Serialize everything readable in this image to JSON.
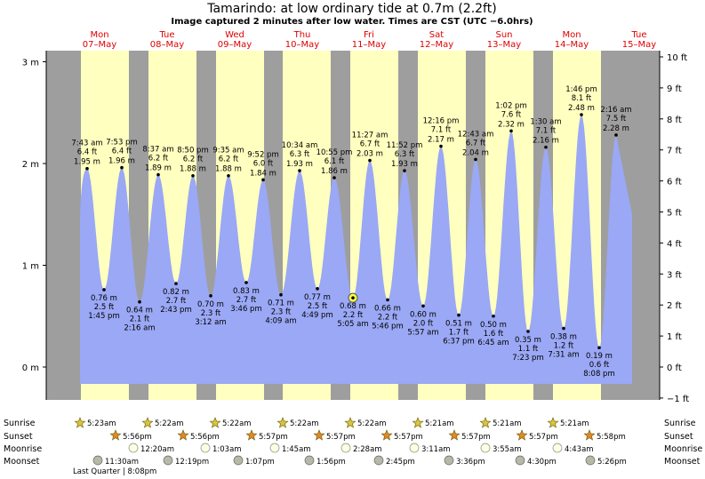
{
  "header": {
    "title": "Tamarindo: at low  ordinary tide at 0.7m (2.2ft)",
    "subtitle": "Image captured 2 minutes after low water. Times are CST (UTC −6.0hrs)"
  },
  "days": [
    {
      "name": "Mon",
      "date": "07–May"
    },
    {
      "name": "Tue",
      "date": "08–May"
    },
    {
      "name": "Wed",
      "date": "09–May"
    },
    {
      "name": "Thu",
      "date": "10–May"
    },
    {
      "name": "Fri",
      "date": "11–May"
    },
    {
      "name": "Sat",
      "date": "12–May"
    },
    {
      "name": "Sun",
      "date": "13–May"
    },
    {
      "name": "Mon",
      "date": "14–May"
    },
    {
      "name": "Tue",
      "date": "15–May"
    }
  ],
  "colors": {
    "night": "#9e9e9e",
    "day": "#ffffc0",
    "water": "#9aa8f5",
    "day_label": "#dd0000",
    "marker": "#ffff44"
  },
  "chart_data": {
    "type": "area",
    "title": "Tamarindo: at low  ordinary tide at 0.7m (2.2ft)",
    "y_left": {
      "unit": "m",
      "ticks": [
        "0 m",
        "1 m",
        "2 m",
        "3 m"
      ],
      "range": [
        -0.35,
        3.07
      ]
    },
    "y_right": {
      "unit": "ft",
      "ticks": [
        "−1 ft",
        "0 ft",
        "1 ft",
        "2 ft",
        "3 ft",
        "4 ft",
        "5 ft",
        "6 ft",
        "7 ft",
        "8 ft",
        "9 ft",
        "10 ft"
      ]
    },
    "current": {
      "height_m": 0.68,
      "height_ft": "2.2 ft",
      "time": "5:05 am"
    },
    "extremes": [
      {
        "type": "high",
        "time": "7:43 am",
        "ft": "6.4 ft",
        "m": "1.95 m",
        "value": 1.95
      },
      {
        "type": "high",
        "time": "7:53 pm",
        "ft": "6.4 ft",
        "m": "1.96 m",
        "value": 1.96
      },
      {
        "type": "low",
        "time": "1:45 pm",
        "ft": "2.5 ft",
        "m": "0.76 m",
        "value": 0.76
      },
      {
        "type": "low",
        "time": "2:16 am",
        "ft": "2.1 ft",
        "m": "0.64 m",
        "value": 0.64
      },
      {
        "type": "high",
        "time": "8:37 am",
        "ft": "6.2 ft",
        "m": "1.89 m",
        "value": 1.89
      },
      {
        "type": "high",
        "time": "8:50 pm",
        "ft": "6.2 ft",
        "m": "1.88 m",
        "value": 1.88
      },
      {
        "type": "low",
        "time": "2:43 pm",
        "ft": "2.7 ft",
        "m": "0.82 m",
        "value": 0.82
      },
      {
        "type": "low",
        "time": "3:12 am",
        "ft": "2.3 ft",
        "m": "0.70 m",
        "value": 0.7
      },
      {
        "type": "high",
        "time": "9:35 am",
        "ft": "6.2 ft",
        "m": "1.88 m",
        "value": 1.88
      },
      {
        "type": "high",
        "time": "9:52 pm",
        "ft": "6.0 ft",
        "m": "1.84 m",
        "value": 1.84
      },
      {
        "type": "low",
        "time": "3:46 pm",
        "ft": "2.7 ft",
        "m": "0.83 m",
        "value": 0.83
      },
      {
        "type": "low",
        "time": "4:09 am",
        "ft": "2.3 ft",
        "m": "0.71 m",
        "value": 0.71
      },
      {
        "type": "high",
        "time": "10:34 am",
        "ft": "6.3 ft",
        "m": "1.93 m",
        "value": 1.93
      },
      {
        "type": "high",
        "time": "10:55 pm",
        "ft": "6.1 ft",
        "m": "1.86 m",
        "value": 1.86
      },
      {
        "type": "low",
        "time": "4:49 pm",
        "ft": "2.5 ft",
        "m": "0.77 m",
        "value": 0.77
      },
      {
        "type": "low",
        "time": "5:05 am",
        "ft": "2.2 ft",
        "m": "0.68 m",
        "value": 0.68
      },
      {
        "type": "high",
        "time": "11:27 am",
        "ft": "6.7 ft",
        "m": "2.03 m",
        "value": 2.03
      },
      {
        "type": "high",
        "time": "11:52 pm",
        "ft": "6.3 ft",
        "m": "1.93 m",
        "value": 1.93
      },
      {
        "type": "low",
        "time": "5:46 pm",
        "ft": "2.2 ft",
        "m": "0.66 m",
        "value": 0.66
      },
      {
        "type": "low",
        "time": "5:57 am",
        "ft": "2.0 ft",
        "m": "0.60 m",
        "value": 0.6
      },
      {
        "type": "high",
        "time": "12:16 pm",
        "ft": "7.1 ft",
        "m": "2.17 m",
        "value": 2.17
      },
      {
        "type": "high",
        "time": "12:43 am",
        "ft": "6.7 ft",
        "m": "2.04 m",
        "value": 2.04
      },
      {
        "type": "low",
        "time": "6:37 pm",
        "ft": "1.7 ft",
        "m": "0.51 m",
        "value": 0.51
      },
      {
        "type": "low",
        "time": "6:45 am",
        "ft": "1.6 ft",
        "m": "0.50 m",
        "value": 0.5
      },
      {
        "type": "high",
        "time": "1:02 pm",
        "ft": "7.6 ft",
        "m": "2.32 m",
        "value": 2.32
      },
      {
        "type": "high",
        "time": "1:30 am",
        "ft": "7.1 ft",
        "m": "2.16 m",
        "value": 2.16
      },
      {
        "type": "low",
        "time": "7:23 pm",
        "ft": "1.1 ft",
        "m": "0.35 m",
        "value": 0.35
      },
      {
        "type": "low",
        "time": "7:31 am",
        "ft": "1.2 ft",
        "m": "0.38 m",
        "value": 0.38
      },
      {
        "type": "high",
        "time": "1:46 pm",
        "ft": "8.1 ft",
        "m": "2.48 m",
        "value": 2.48
      },
      {
        "type": "high",
        "time": "2:16 am",
        "ft": "7.5 ft",
        "m": "2.28 m",
        "value": 2.28
      },
      {
        "type": "low",
        "time": "8:08 pm",
        "ft": "0.6 ft",
        "m": "0.19 m",
        "value": 0.19
      }
    ]
  },
  "rows": {
    "labels": [
      "Sunrise",
      "Sunset",
      "Moonrise",
      "Moonset"
    ],
    "sunrise": [
      "5:23am",
      "5:22am",
      "5:22am",
      "5:22am",
      "5:22am",
      "5:21am",
      "5:21am",
      "5:21am"
    ],
    "sunset": [
      "5:56pm",
      "5:56pm",
      "5:57pm",
      "5:57pm",
      "5:57pm",
      "5:57pm",
      "5:57pm",
      "5:58pm"
    ],
    "moonrise": [
      "12:20am",
      "1:03am",
      "1:45am",
      "2:28am",
      "3:11am",
      "3:55am",
      "4:43am"
    ],
    "moonset": [
      "11:30am",
      "12:19pm",
      "1:07pm",
      "1:56pm",
      "2:45pm",
      "3:36pm",
      "4:30pm",
      "5:26pm"
    ],
    "phase": "Last Quarter | 8:08pm"
  }
}
